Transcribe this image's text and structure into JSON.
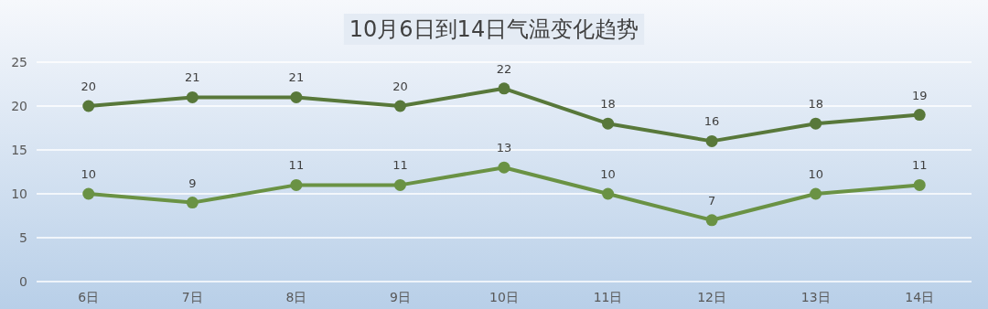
{
  "chart_data": {
    "type": "line",
    "title": "10月6日到14日气温变化趋势",
    "categories": [
      "6日",
      "7日",
      "8日",
      "9日",
      "10日",
      "11日",
      "12日",
      "13日",
      "14日"
    ],
    "series": [
      {
        "color": "#58783a",
        "values": [
          20,
          21,
          21,
          20,
          22,
          18,
          16,
          18,
          19
        ]
      },
      {
        "color": "#6a9244",
        "values": [
          10,
          9,
          11,
          11,
          13,
          10,
          7,
          10,
          11
        ]
      }
    ],
    "ylim": [
      0,
      25
    ],
    "yticks": [
      0,
      5,
      10,
      15,
      20,
      25
    ],
    "grid": "y",
    "marker": "circle",
    "line_style": "solid",
    "data_labels": true
  }
}
